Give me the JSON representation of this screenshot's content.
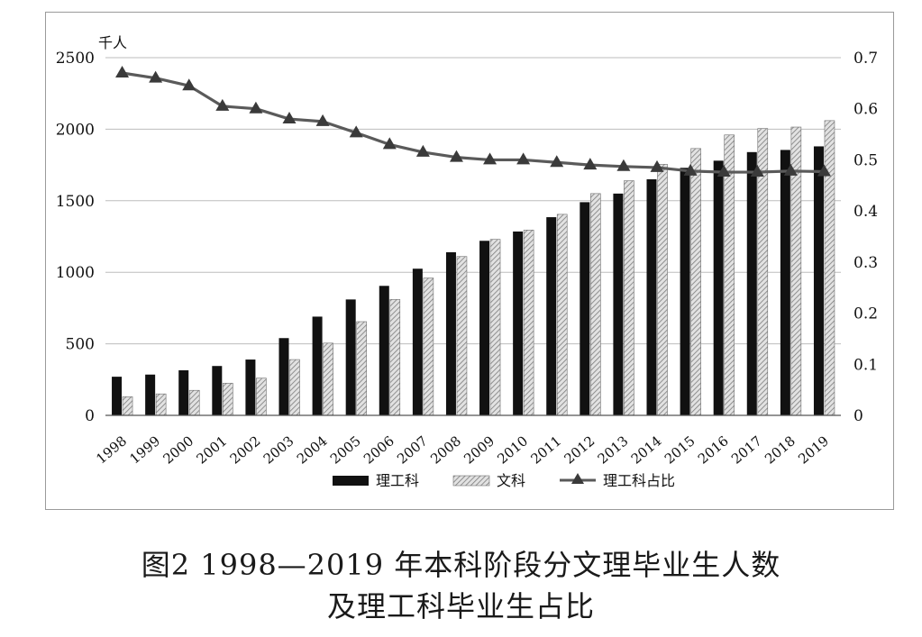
{
  "caption": {
    "line1": "图2  1998—2019 年本科阶段分文理毕业生人数",
    "line2": "及理工科毕业生占比"
  },
  "colors": {
    "stem_bar": "#111111",
    "arts_bar_hatch": "#8a8a8a",
    "ratio_line": "#5a5a5a",
    "grid": "#bdbdbd"
  },
  "chart_data": {
    "type": "bar+line",
    "left_axis_unit": "千人",
    "categories": [
      "1998",
      "1999",
      "2000",
      "2001",
      "2002",
      "2003",
      "2004",
      "2005",
      "2006",
      "2007",
      "2008",
      "2009",
      "2010",
      "2011",
      "2012",
      "2013",
      "2014",
      "2015",
      "2016",
      "2017",
      "2018",
      "2019"
    ],
    "ylim_left": [
      0,
      2500
    ],
    "yticks_left": [
      "0",
      "500",
      "1000",
      "1500",
      "2000",
      "2500"
    ],
    "ylim_right": [
      0,
      0.7
    ],
    "yticks_right": [
      "0",
      "0.1",
      "0.2",
      "0.3",
      "0.4",
      "0.5",
      "0.6",
      "0.7"
    ],
    "grid": "horizontal",
    "legend_position": "bottom",
    "series": [
      {
        "name": "理工科",
        "kind": "bar",
        "axis": "left",
        "style": "solid",
        "values": [
          270,
          285,
          315,
          345,
          390,
          540,
          690,
          810,
          905,
          1025,
          1140,
          1220,
          1285,
          1385,
          1490,
          1550,
          1650,
          1730,
          1780,
          1840,
          1855,
          1880
        ]
      },
      {
        "name": "文科",
        "kind": "bar",
        "axis": "left",
        "style": "hatched",
        "values": [
          130,
          150,
          175,
          225,
          260,
          390,
          505,
          655,
          810,
          960,
          1110,
          1230,
          1295,
          1405,
          1550,
          1640,
          1755,
          1865,
          1960,
          2005,
          2015,
          2060
        ]
      },
      {
        "name": "理工科占比",
        "kind": "line",
        "axis": "right",
        "marker": "triangle",
        "values": [
          0.67,
          0.66,
          0.645,
          0.605,
          0.6,
          0.58,
          0.575,
          0.553,
          0.53,
          0.515,
          0.505,
          0.5,
          0.5,
          0.495,
          0.49,
          0.487,
          0.485,
          0.478,
          0.476,
          0.476,
          0.478,
          0.477
        ]
      }
    ]
  }
}
